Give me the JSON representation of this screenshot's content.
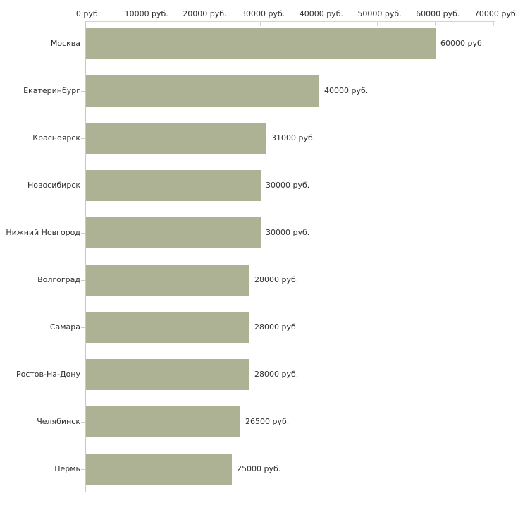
{
  "chart_data": {
    "type": "bar",
    "orientation": "horizontal",
    "title": "",
    "xlabel": "",
    "ylabel": "",
    "unit": "руб.",
    "categories": [
      "Москва",
      "Екатеринбург",
      "Красноярск",
      "Новосибирск",
      "Нижний Новгород",
      "Волгоград",
      "Самара",
      "Ростов-На-Дону",
      "Челябинск",
      "Пермь"
    ],
    "values": [
      60000,
      40000,
      31000,
      30000,
      30000,
      28000,
      28000,
      28000,
      26500,
      25000
    ],
    "value_labels": [
      "60000 руб.",
      "40000 руб.",
      "31000 руб.",
      "30000 руб.",
      "30000 руб.",
      "28000 руб.",
      "28000 руб.",
      "28000 руб.",
      "26500 руб.",
      "25000 руб."
    ],
    "x_ticks": [
      0,
      10000,
      20000,
      30000,
      40000,
      50000,
      60000,
      70000
    ],
    "x_tick_labels": [
      "0 руб.",
      "10000 руб.",
      "20000 руб.",
      "30000 руб.",
      "40000 руб.",
      "50000 руб.",
      "60000 руб.",
      "70000 руб."
    ],
    "xlim": [
      0,
      70000
    ],
    "grid": false,
    "legend": false,
    "colors": {
      "bar": "#aeb294",
      "x_axis_line": "#d8d9ba",
      "x_tick_mark": "#d8d9ba",
      "y_axis_line": "#c8c8c8",
      "y_tick_mark": "#ced0b4",
      "text": "#2f2f2f",
      "background": "#ffffff"
    }
  }
}
